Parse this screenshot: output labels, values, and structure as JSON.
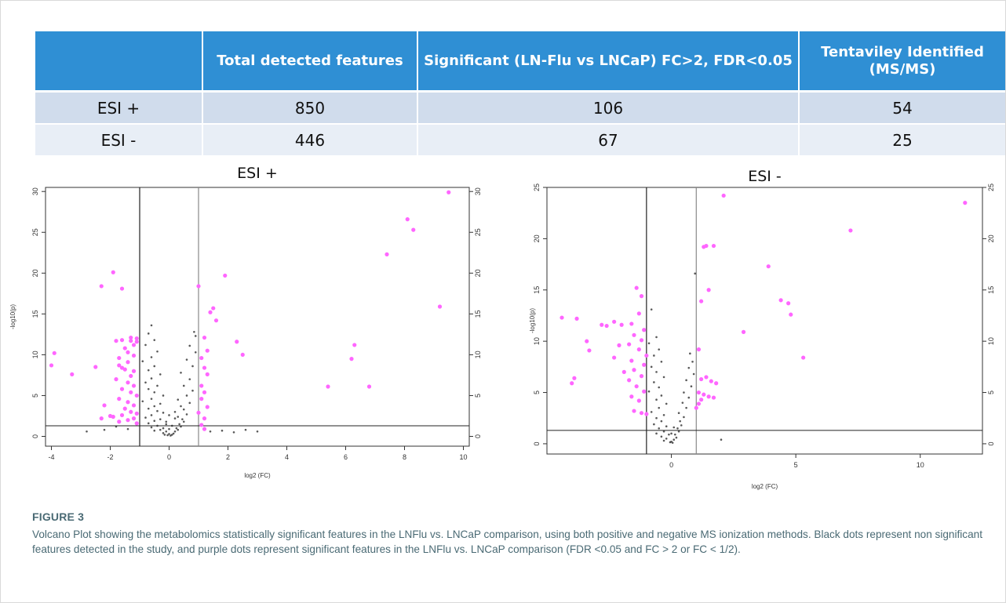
{
  "table": {
    "headers": [
      "",
      "Total detected features",
      "Significant (LN-Flu vs LNCaP) FC>2, FDR<0.05",
      "Tentaviley Identified (MS/MS)"
    ],
    "rows": [
      {
        "mode": "ESI +",
        "total": "850",
        "significant": "106",
        "identified": "54"
      },
      {
        "mode": "ESI -",
        "total": "446",
        "significant": "67",
        "identified": "25"
      }
    ]
  },
  "caption": {
    "label": "FIGURE 3",
    "text": "Volcano Plot showing the metabolomics statistically significant features in the LNFlu vs. LNCaP comparison, using both positive and negative MS ionization methods. Black dots represent non significant features detected in the study, and purple dots represent significant features in the LNFlu vs. LNCaP comparison (FDR <0.05 and FC > 2 or FC < 1/2)."
  },
  "colors": {
    "header_bg": "#2f8fd4",
    "significant": "#ff66ff",
    "nonsignificant": "#222222"
  },
  "chart_data": [
    {
      "type": "scatter",
      "title": "ESI +",
      "xlabel": "log2 (FC)",
      "ylabel": "-log10(p)",
      "xlim": [
        -4.2,
        10.2
      ],
      "ylim": [
        -1.2,
        30.5
      ],
      "xticks": [
        -4,
        -2,
        0,
        2,
        4,
        6,
        8,
        10
      ],
      "yticks": [
        0,
        5,
        10,
        15,
        20,
        25,
        30
      ],
      "right_axis_ticks": [
        0,
        5,
        10,
        15,
        20,
        25,
        30
      ],
      "reference_lines": {
        "vertical": [
          -1,
          1
        ],
        "horizontal": [
          1.3
        ]
      },
      "significant_points": [
        [
          9.5,
          29.9
        ],
        [
          8.1,
          26.6
        ],
        [
          8.3,
          25.3
        ],
        [
          7.4,
          22.3
        ],
        [
          9.2,
          15.9
        ],
        [
          6.3,
          11.2
        ],
        [
          6.2,
          9.5
        ],
        [
          6.8,
          6.1
        ],
        [
          5.4,
          6.1
        ],
        [
          1.9,
          19.7
        ],
        [
          1.0,
          18.4
        ],
        [
          1.5,
          15.7
        ],
        [
          1.4,
          15.2
        ],
        [
          1.6,
          14.2
        ],
        [
          2.3,
          11.6
        ],
        [
          2.5,
          10.0
        ],
        [
          1.2,
          12.1
        ],
        [
          1.3,
          10.5
        ],
        [
          1.1,
          9.6
        ],
        [
          1.2,
          8.4
        ],
        [
          1.3,
          7.6
        ],
        [
          1.1,
          6.2
        ],
        [
          1.2,
          5.4
        ],
        [
          1.1,
          4.6
        ],
        [
          1.3,
          3.6
        ],
        [
          1.0,
          2.9
        ],
        [
          1.2,
          2.2
        ],
        [
          1.1,
          1.4
        ],
        [
          1.2,
          0.9
        ],
        [
          -1.9,
          20.1
        ],
        [
          -2.3,
          18.4
        ],
        [
          -1.6,
          18.1
        ],
        [
          -3.9,
          10.2
        ],
        [
          -4.0,
          8.7
        ],
        [
          -3.3,
          7.6
        ],
        [
          -2.5,
          8.5
        ],
        [
          -2.2,
          3.8
        ],
        [
          -2.3,
          2.2
        ],
        [
          -1.8,
          11.7
        ],
        [
          -1.6,
          11.8
        ],
        [
          -1.3,
          11.7
        ],
        [
          -1.1,
          11.6
        ],
        [
          -1.2,
          11.2
        ],
        [
          -1.4,
          10.3
        ],
        [
          -1.2,
          9.9
        ],
        [
          -1.7,
          9.6
        ],
        [
          -1.4,
          9.1
        ],
        [
          -1.7,
          8.7
        ],
        [
          -1.6,
          8.4
        ],
        [
          -1.5,
          8.2
        ],
        [
          -1.2,
          8.0
        ],
        [
          -1.3,
          7.4
        ],
        [
          -1.8,
          7.0
        ],
        [
          -1.4,
          6.6
        ],
        [
          -1.2,
          6.2
        ],
        [
          -1.6,
          5.8
        ],
        [
          -1.3,
          5.4
        ],
        [
          -1.1,
          5.0
        ],
        [
          -1.7,
          4.6
        ],
        [
          -1.4,
          4.2
        ],
        [
          -1.2,
          3.8
        ],
        [
          -1.5,
          3.4
        ],
        [
          -1.3,
          3.0
        ],
        [
          -1.1,
          2.8
        ],
        [
          -1.6,
          2.6
        ],
        [
          -1.9,
          2.4
        ],
        [
          -1.2,
          2.2
        ],
        [
          -1.4,
          2.0
        ],
        [
          -1.7,
          1.8
        ],
        [
          -2.0,
          2.5
        ],
        [
          -1.1,
          1.6
        ],
        [
          -1.3,
          12.1
        ],
        [
          -1.1,
          12.0
        ],
        [
          -1.5,
          10.8
        ]
      ],
      "nonsignificant_points": [
        [
          -0.6,
          13.6
        ],
        [
          -0.7,
          12.6
        ],
        [
          -0.5,
          11.8
        ],
        [
          -0.8,
          11.2
        ],
        [
          -0.4,
          10.4
        ],
        [
          -0.6,
          9.7
        ],
        [
          -0.9,
          9.2
        ],
        [
          -0.5,
          8.6
        ],
        [
          -0.7,
          8.1
        ],
        [
          -0.3,
          7.6
        ],
        [
          -0.6,
          7.1
        ],
        [
          -0.8,
          6.6
        ],
        [
          -0.4,
          6.2
        ],
        [
          -0.7,
          5.8
        ],
        [
          -0.5,
          5.4
        ],
        [
          -0.2,
          5.0
        ],
        [
          -0.6,
          4.6
        ],
        [
          -0.9,
          4.3
        ],
        [
          -0.3,
          4.0
        ],
        [
          -0.5,
          3.7
        ],
        [
          -0.7,
          3.4
        ],
        [
          -0.4,
          3.1
        ],
        [
          -0.2,
          2.9
        ],
        [
          -0.6,
          2.6
        ],
        [
          -0.8,
          2.3
        ],
        [
          -0.3,
          2.1
        ],
        [
          -0.5,
          1.9
        ],
        [
          -0.7,
          1.6
        ],
        [
          -0.1,
          1.5
        ],
        [
          -0.4,
          1.3
        ],
        [
          -0.6,
          1.1
        ],
        [
          -0.2,
          1.0
        ],
        [
          -0.3,
          0.8
        ],
        [
          -0.5,
          0.7
        ],
        [
          -0.1,
          0.6
        ],
        [
          -0.2,
          0.4
        ],
        [
          0.0,
          0.3
        ],
        [
          0.1,
          0.2
        ],
        [
          0.05,
          0.1
        ],
        [
          -0.05,
          0.15
        ],
        [
          0.15,
          0.35
        ],
        [
          0.2,
          0.6
        ],
        [
          0.3,
          0.8
        ],
        [
          0.25,
          1.0
        ],
        [
          0.4,
          1.2
        ],
        [
          0.35,
          1.5
        ],
        [
          0.5,
          1.8
        ],
        [
          0.45,
          2.1
        ],
        [
          0.3,
          2.4
        ],
        [
          0.6,
          2.7
        ],
        [
          0.2,
          3.0
        ],
        [
          0.5,
          3.3
        ],
        [
          0.4,
          3.7
        ],
        [
          0.7,
          4.1
        ],
        [
          0.3,
          4.5
        ],
        [
          0.6,
          5.0
        ],
        [
          0.8,
          5.6
        ],
        [
          0.5,
          6.2
        ],
        [
          0.7,
          7.0
        ],
        [
          0.4,
          7.8
        ],
        [
          0.8,
          8.6
        ],
        [
          0.6,
          9.4
        ],
        [
          0.9,
          10.3
        ],
        [
          0.7,
          11.1
        ],
        [
          0.9,
          12.3
        ],
        [
          0.85,
          12.8
        ],
        [
          1.4,
          0.6
        ],
        [
          1.8,
          0.7
        ],
        [
          2.2,
          0.5
        ],
        [
          2.6,
          0.8
        ],
        [
          3.0,
          0.6
        ],
        [
          -1.4,
          0.9
        ],
        [
          -2.2,
          0.8
        ],
        [
          -2.8,
          0.6
        ],
        [
          -1.8,
          1.2
        ],
        [
          0.0,
          0.9
        ],
        [
          0.1,
          1.3
        ],
        [
          -0.1,
          1.8
        ],
        [
          0.2,
          2.2
        ],
        [
          0.0,
          2.6
        ],
        [
          -0.15,
          0.2
        ]
      ]
    },
    {
      "type": "scatter",
      "title": "ESI -",
      "xlabel": "log2 (FC)",
      "ylabel": "-log10(p)",
      "xlim": [
        -5.0,
        12.5
      ],
      "ylim": [
        -1.0,
        25.0
      ],
      "xticks": [
        0,
        5,
        10
      ],
      "yticks": [
        0,
        5,
        10,
        15,
        20,
        25
      ],
      "right_axis_ticks": [
        0,
        5,
        10,
        15,
        20,
        25
      ],
      "reference_lines": {
        "vertical": [
          -1,
          1
        ],
        "horizontal": [
          1.3
        ]
      },
      "significant_points": [
        [
          11.8,
          23.5
        ],
        [
          7.2,
          20.8
        ],
        [
          2.1,
          24.2
        ],
        [
          1.4,
          19.3
        ],
        [
          1.7,
          19.3
        ],
        [
          1.3,
          19.2
        ],
        [
          3.9,
          17.3
        ],
        [
          4.4,
          14.0
        ],
        [
          4.7,
          13.7
        ],
        [
          4.8,
          12.6
        ],
        [
          2.9,
          10.9
        ],
        [
          5.3,
          8.4
        ],
        [
          1.5,
          15.0
        ],
        [
          1.2,
          13.9
        ],
        [
          1.1,
          9.2
        ],
        [
          1.4,
          6.5
        ],
        [
          1.2,
          6.3
        ],
        [
          1.6,
          6.1
        ],
        [
          1.8,
          5.9
        ],
        [
          1.1,
          5.0
        ],
        [
          1.3,
          4.8
        ],
        [
          1.5,
          4.6
        ],
        [
          1.7,
          4.5
        ],
        [
          1.2,
          4.3
        ],
        [
          1.1,
          3.9
        ],
        [
          1.0,
          3.5
        ],
        [
          -4.4,
          12.3
        ],
        [
          -3.8,
          12.2
        ],
        [
          -3.4,
          10.0
        ],
        [
          -3.3,
          9.1
        ],
        [
          -3.9,
          6.4
        ],
        [
          -4.0,
          5.9
        ],
        [
          -2.8,
          11.6
        ],
        [
          -2.6,
          11.5
        ],
        [
          -2.3,
          11.9
        ],
        [
          -2.0,
          11.6
        ],
        [
          -1.6,
          11.7
        ],
        [
          -1.4,
          15.2
        ],
        [
          -1.2,
          14.4
        ],
        [
          -1.3,
          12.7
        ],
        [
          -1.1,
          11.1
        ],
        [
          -1.5,
          10.6
        ],
        [
          -1.2,
          10.1
        ],
        [
          -1.7,
          9.7
        ],
        [
          -2.1,
          9.6
        ],
        [
          -1.3,
          9.2
        ],
        [
          -1.0,
          8.6
        ],
        [
          -2.3,
          8.4
        ],
        [
          -1.6,
          8.1
        ],
        [
          -1.1,
          7.7
        ],
        [
          -1.5,
          7.2
        ],
        [
          -1.9,
          7.0
        ],
        [
          -1.2,
          6.6
        ],
        [
          -1.7,
          6.2
        ],
        [
          -1.4,
          5.6
        ],
        [
          -1.1,
          5.1
        ],
        [
          -1.6,
          4.6
        ],
        [
          -1.3,
          4.2
        ],
        [
          -1.5,
          3.2
        ],
        [
          -1.2,
          3.0
        ],
        [
          -1.0,
          2.9
        ]
      ],
      "nonsignificant_points": [
        [
          -0.8,
          13.1
        ],
        [
          -0.6,
          10.4
        ],
        [
          -0.9,
          9.8
        ],
        [
          -0.5,
          9.2
        ],
        [
          -0.7,
          8.6
        ],
        [
          -0.4,
          8.0
        ],
        [
          -0.8,
          7.5
        ],
        [
          -0.6,
          7.0
        ],
        [
          -0.3,
          6.5
        ],
        [
          -0.7,
          6.0
        ],
        [
          -0.5,
          5.5
        ],
        [
          -0.9,
          5.1
        ],
        [
          -0.4,
          4.7
        ],
        [
          -0.6,
          4.3
        ],
        [
          -0.2,
          3.9
        ],
        [
          -0.5,
          3.5
        ],
        [
          -0.8,
          3.1
        ],
        [
          -0.3,
          2.8
        ],
        [
          -0.6,
          2.5
        ],
        [
          -0.4,
          2.2
        ],
        [
          -0.7,
          1.9
        ],
        [
          -0.2,
          1.7
        ],
        [
          -0.5,
          1.5
        ],
        [
          -0.3,
          1.2
        ],
        [
          -0.6,
          1.0
        ],
        [
          -0.1,
          0.9
        ],
        [
          -0.4,
          0.7
        ],
        [
          -0.2,
          0.5
        ],
        [
          -0.3,
          0.3
        ],
        [
          0.0,
          0.2
        ],
        [
          0.05,
          0.1
        ],
        [
          -0.05,
          0.15
        ],
        [
          0.1,
          0.4
        ],
        [
          0.2,
          0.6
        ],
        [
          0.15,
          0.9
        ],
        [
          0.3,
          1.2
        ],
        [
          0.25,
          1.5
        ],
        [
          0.4,
          1.8
        ],
        [
          0.35,
          2.2
        ],
        [
          0.5,
          2.6
        ],
        [
          0.3,
          3.0
        ],
        [
          0.6,
          3.5
        ],
        [
          0.45,
          4.0
        ],
        [
          0.7,
          4.5
        ],
        [
          0.5,
          5.0
        ],
        [
          0.8,
          5.6
        ],
        [
          0.6,
          6.2
        ],
        [
          0.9,
          6.8
        ],
        [
          0.7,
          7.4
        ],
        [
          0.85,
          8.0
        ],
        [
          0.75,
          8.8
        ],
        [
          0.95,
          16.6
        ],
        [
          2.0,
          0.4
        ],
        [
          0.0,
          1.0
        ],
        [
          0.1,
          1.6
        ]
      ]
    }
  ]
}
